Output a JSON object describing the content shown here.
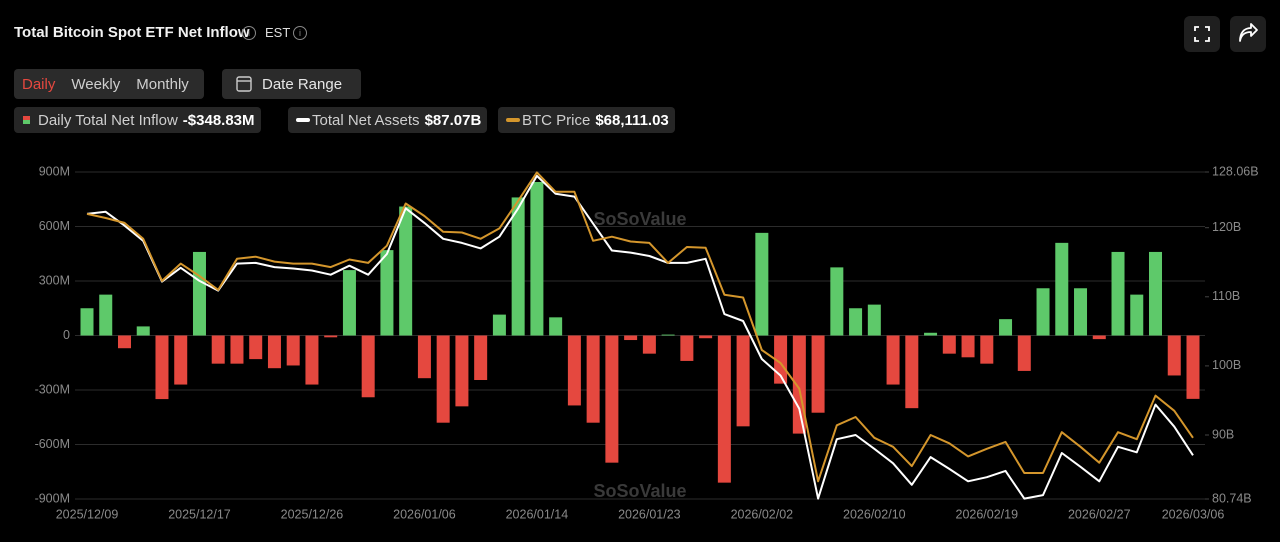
{
  "chart_data": {
    "type": "bar-line",
    "title": "Total Bitcoin Spot ETF Net Inflow",
    "timezone": "EST",
    "tabs": [
      "Daily",
      "Weekly",
      "Monthly"
    ],
    "date_range": "Date Range",
    "watermark": "SoSoValue",
    "categories": [
      "2025/12/09",
      null,
      null,
      null,
      null,
      null,
      "2025/12/17",
      null,
      null,
      null,
      null,
      null,
      "2025/12/26",
      null,
      null,
      null,
      null,
      null,
      "2026/01/06",
      null,
      null,
      null,
      null,
      null,
      "2026/01/14",
      null,
      null,
      null,
      null,
      null,
      "2026/01/23",
      null,
      null,
      null,
      null,
      null,
      "2026/02/02",
      null,
      null,
      null,
      null,
      null,
      "2026/02/10",
      null,
      null,
      null,
      null,
      null,
      "2026/02/19",
      null,
      null,
      null,
      null,
      null,
      "2026/02/27",
      null,
      null,
      null,
      null,
      "2026/03/06"
    ],
    "series": [
      {
        "name": "Daily Total Net Inflow",
        "latest_label": "-$348.83M",
        "color": "#5ec96a",
        "negative_color": "#e5483f",
        "values": [
          150,
          225,
          -70,
          50,
          -350,
          -270,
          460,
          -155,
          -155,
          -130,
          -180,
          -165,
          -270,
          -10,
          360,
          -340,
          470,
          710,
          -235,
          -480,
          -390,
          -245,
          115,
          760,
          845,
          100,
          -385,
          -480,
          -700,
          -25,
          -100,
          5,
          -140,
          -15,
          -810,
          -500,
          565,
          -265,
          -540,
          -425,
          375,
          150,
          170,
          -270,
          -400,
          15,
          -100,
          -120,
          -155,
          90,
          -195,
          260,
          510,
          260,
          -20,
          460,
          225,
          460,
          -220,
          -348.83
        ]
      },
      {
        "name": "Total Net Assets",
        "latest_label": "$87.07B",
        "color": "#ffffff",
        "axis": "y2",
        "values": [
          122.0,
          122.3,
          120.3,
          118.1,
          112.2,
          114.2,
          112.3,
          110.9,
          114.8,
          114.9,
          114.3,
          114.1,
          113.8,
          113.2,
          114.5,
          113.2,
          116.2,
          122.8,
          120.7,
          118.4,
          117.8,
          117.0,
          118.7,
          122.8,
          127.5,
          124.9,
          124.5,
          120.6,
          116.7,
          116.4,
          115.9,
          114.9,
          114.9,
          115.5,
          107.5,
          106.5,
          101.0,
          98.6,
          93.8,
          80.8,
          89.4,
          90.0,
          88.0,
          85.9,
          82.8,
          86.8,
          85.1,
          83.3,
          83.9,
          84.8,
          80.8,
          81.3,
          87.4,
          85.4,
          83.3,
          88.3,
          87.5,
          94.4,
          91.2,
          87.07
        ]
      },
      {
        "name": "BTC Price",
        "latest_label": "$68,111.03",
        "color": "#d4962c",
        "axis": "y2",
        "values": [
          122.0,
          121.4,
          120.7,
          118.4,
          112.3,
          114.8,
          113.0,
          111.0,
          115.5,
          115.8,
          115.1,
          114.8,
          114.8,
          114.3,
          115.4,
          114.9,
          117.4,
          123.5,
          121.7,
          119.4,
          119.3,
          118.4,
          119.9,
          123.9,
          128.0,
          125.2,
          125.2,
          118.1,
          118.7,
          118.0,
          117.8,
          114.9,
          117.2,
          117.1,
          110.3,
          109.9,
          102.3,
          100.4,
          96.7,
          83.3,
          91.4,
          92.6,
          89.6,
          88.3,
          85.5,
          90.0,
          88.8,
          86.9,
          88.0,
          89.0,
          84.5,
          84.5,
          90.4,
          88.3,
          86.0,
          90.4,
          89.4,
          95.7,
          93.5,
          89.6
        ]
      }
    ],
    "ylim": [
      -900,
      900
    ],
    "yticks": [
      {
        "value": -900,
        "label": "-900M"
      },
      {
        "value": -600,
        "label": "-600M"
      },
      {
        "value": -300,
        "label": "-300M"
      },
      0,
      {
        "value": 300,
        "label": "300M"
      },
      {
        "value": 600,
        "label": "600M"
      },
      {
        "value": 900,
        "label": "900M"
      }
    ],
    "y2lim": [
      80.74,
      128.06
    ],
    "y2ticks": [
      {
        "value": 80.74,
        "label": "80.74B"
      },
      {
        "value": 90,
        "label": "90B"
      },
      {
        "value": 100,
        "label": "100B"
      },
      {
        "value": 110,
        "label": "110B"
      },
      {
        "value": 120,
        "label": "120B"
      },
      {
        "value": 128.06,
        "label": "128.06B"
      }
    ],
    "grid": true
  }
}
